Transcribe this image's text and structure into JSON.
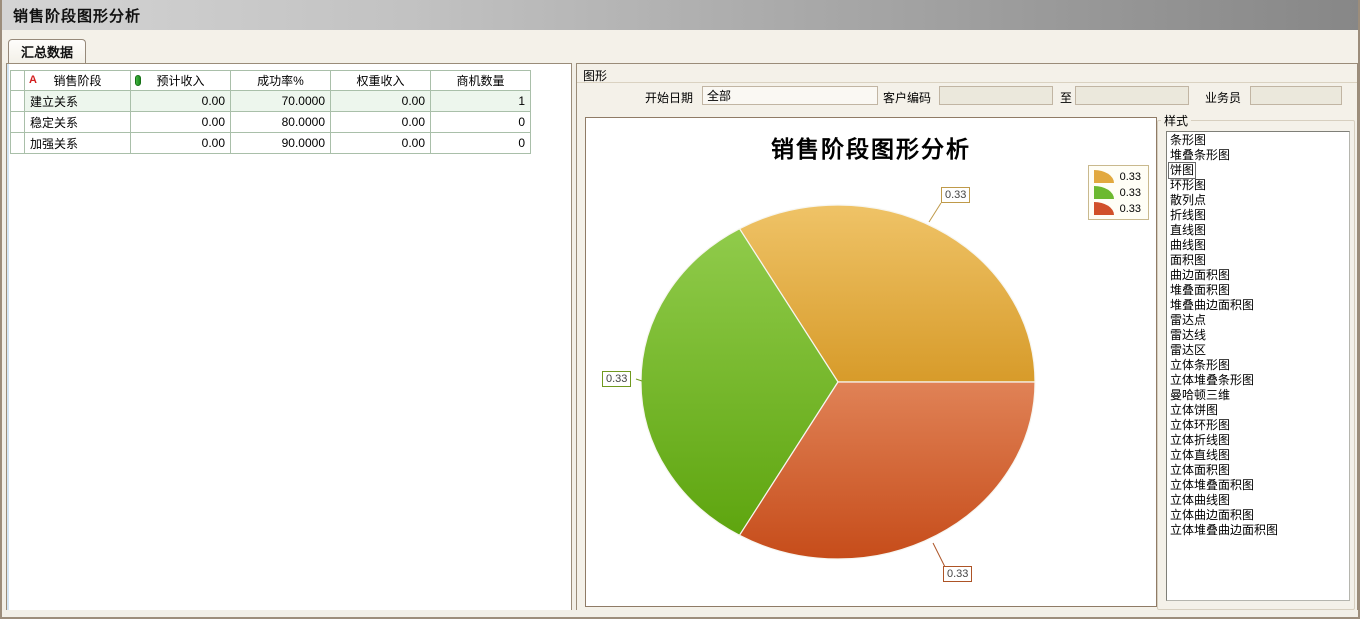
{
  "window": {
    "title": "销售阶段图形分析"
  },
  "tabs": [
    {
      "label": "汇总数据"
    }
  ],
  "table": {
    "header_icon_a": "A",
    "columns": [
      "销售阶段",
      "预计收入",
      "成功率%",
      "权重收入",
      "商机数量"
    ],
    "rows": [
      {
        "stage": "建立关系",
        "expected": "0.00",
        "success": "70.0000",
        "weighted": "0.00",
        "count": "1",
        "selected": true
      },
      {
        "stage": "稳定关系",
        "expected": "0.00",
        "success": "80.0000",
        "weighted": "0.00",
        "count": "0",
        "selected": false
      },
      {
        "stage": "加强关系",
        "expected": "0.00",
        "success": "90.0000",
        "weighted": "0.00",
        "count": "0",
        "selected": false
      }
    ]
  },
  "graph_panel": {
    "title": "图形",
    "filters": {
      "start_date_label": "开始日期",
      "start_date_value": "全部",
      "customer_code_label": "客户编码",
      "customer_code_value": "",
      "to_label": "至",
      "to_value": "",
      "salesman_label": "业务员",
      "salesman_value": ""
    }
  },
  "chart_data": {
    "type": "pie",
    "title": "销售阶段图形分析",
    "categories": [
      "建立关系",
      "稳定关系",
      "加强关系"
    ],
    "values": [
      0.33,
      0.33,
      0.33
    ],
    "labels": [
      "0.33",
      "0.33",
      "0.33"
    ],
    "legend": [
      "0.33",
      "0.33",
      "0.33"
    ],
    "legend_position": "top-right",
    "colors": [
      "#e2a93f",
      "#6db92f",
      "#d1502a"
    ],
    "gradients": [
      [
        "#efc367",
        "#d79b2a"
      ],
      [
        "#90cb4b",
        "#5ea50f"
      ],
      [
        "#e08256",
        "#c64c1a"
      ]
    ],
    "label_colors": [
      "#bf9a4a",
      "#70991f",
      "#ad5426"
    ],
    "start_angle_deg": 0,
    "direction": "ccw"
  },
  "style_panel": {
    "title": "样式",
    "selected_index": 2,
    "items": [
      "条形图",
      "堆叠条形图",
      "饼图",
      "环形图",
      "散列点",
      "折线图",
      "直线图",
      "曲线图",
      "面积图",
      "曲边面积图",
      "堆叠面积图",
      "堆叠曲边面积图",
      "雷达点",
      "雷达线",
      "雷达区",
      "立体条形图",
      "立体堆叠条形图",
      "曼哈顿三维",
      "立体饼图",
      "立体环形图",
      "立体折线图",
      "立体直线图",
      "立体面积图",
      "立体堆叠面积图",
      "立体曲线图",
      "立体曲边面积图",
      "立体堆叠曲边面积图"
    ]
  }
}
